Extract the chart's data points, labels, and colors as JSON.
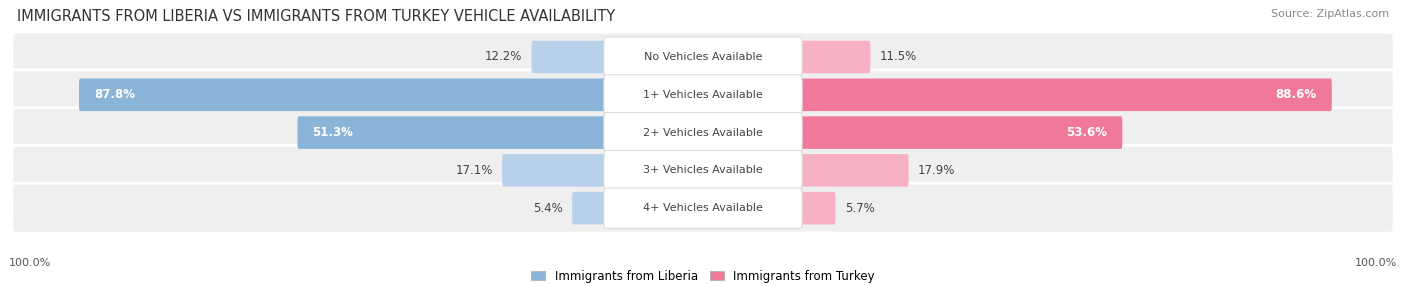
{
  "title": "IMMIGRANTS FROM LIBERIA VS IMMIGRANTS FROM TURKEY VEHICLE AVAILABILITY",
  "source": "Source: ZipAtlas.com",
  "categories": [
    "No Vehicles Available",
    "1+ Vehicles Available",
    "2+ Vehicles Available",
    "3+ Vehicles Available",
    "4+ Vehicles Available"
  ],
  "liberia_values": [
    12.2,
    87.8,
    51.3,
    17.1,
    5.4
  ],
  "turkey_values": [
    11.5,
    88.6,
    53.6,
    17.9,
    5.7
  ],
  "liberia_color": "#8ab4d8",
  "turkey_color": "#f07898",
  "liberia_color_light": "#b8d0e8",
  "turkey_color_light": "#f8b0c4",
  "liberia_label": "Immigrants from Liberia",
  "turkey_label": "Immigrants from Turkey",
  "row_bg_color": "#efefef",
  "row_bg_color_alt": "#e8e8e8",
  "title_fontsize": 10.5,
  "source_fontsize": 8,
  "value_fontsize": 8.5,
  "cat_fontsize": 8,
  "footer_label": "100.0%",
  "footer_fontsize": 8
}
